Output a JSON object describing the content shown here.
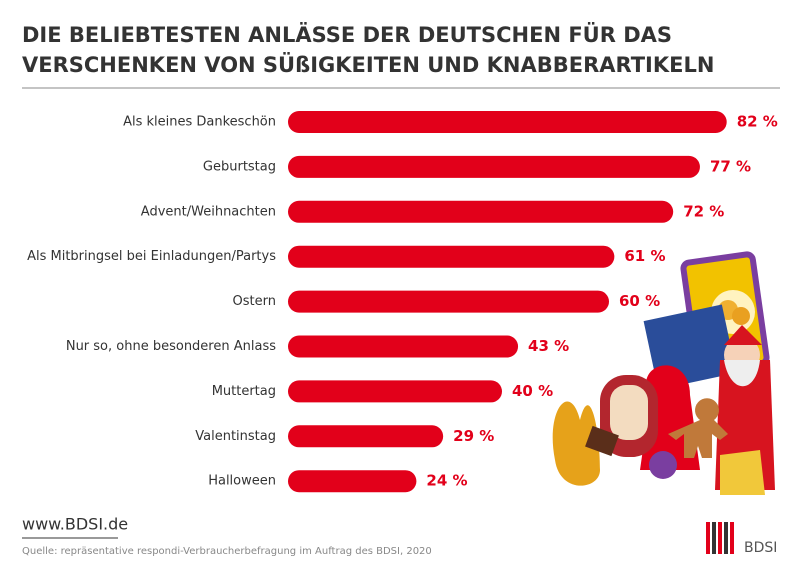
{
  "chart_data": {
    "type": "bar",
    "orientation": "horizontal",
    "title": [
      "DIE BELIEBTESTEN ANLÄSSE DER DEUTSCHEN FÜR DAS",
      "VERSCHENKEN VON SÜßIGKEITEN UND KNABBERARTIKELN"
    ],
    "categories": [
      "Als kleines Dankeschön",
      "Geburtstag",
      "Advent/Weihnachten",
      "Als Mitbringsel bei Einladungen/Partys",
      "Ostern",
      "Nur so, ohne besonderen Anlass",
      "Muttertag",
      "Valentinstag",
      "Halloween"
    ],
    "values": [
      82,
      77,
      72,
      61,
      60,
      43,
      40,
      29,
      24
    ],
    "value_labels": [
      "82 %",
      "77 %",
      "72 %",
      "61 %",
      "60 %",
      "43 %",
      "40 %",
      "29 %",
      "24 %"
    ],
    "color": "#e2001a"
  },
  "footer": {
    "website": "www.BDSI.de",
    "source": "Quelle: repräsentative respondi-Verbraucherbefragung im Auftrag des BDSI, 2020",
    "logo": "BDSI"
  }
}
